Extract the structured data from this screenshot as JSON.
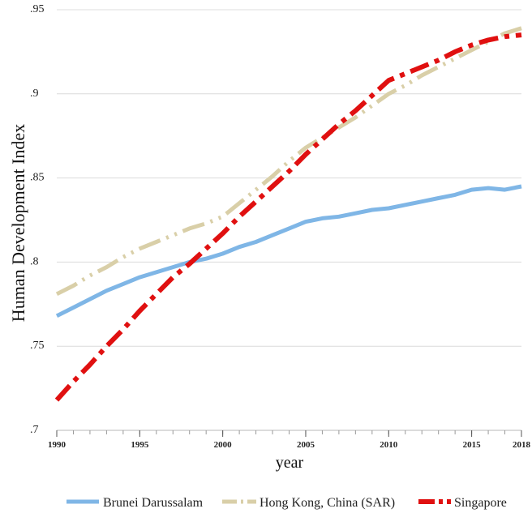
{
  "chart_data": {
    "type": "line",
    "title": "",
    "xlabel": "year",
    "ylabel": "Human Development Index",
    "xlim": [
      1990,
      2018
    ],
    "ylim": [
      0.7,
      0.95
    ],
    "x_ticks": [
      1990,
      1995,
      2000,
      2005,
      2010,
      2015,
      2018
    ],
    "x_tick_labels": [
      "1990",
      "1995",
      "2000",
      "2005",
      "2010",
      "2015",
      "2018"
    ],
    "y_ticks": [
      0.7,
      0.75,
      0.8,
      0.85,
      0.9,
      0.95
    ],
    "y_tick_labels": [
      ".7",
      ".75",
      ".8",
      ".85",
      ".9",
      ".95"
    ],
    "grid": true,
    "legend_position": "bottom",
    "x": [
      1990,
      1991,
      1992,
      1993,
      1994,
      1995,
      1996,
      1997,
      1998,
      1999,
      2000,
      2001,
      2002,
      2003,
      2004,
      2005,
      2006,
      2007,
      2008,
      2009,
      2010,
      2011,
      2012,
      2013,
      2014,
      2015,
      2016,
      2017,
      2018
    ],
    "series": [
      {
        "name": "Brunei Darussalam",
        "color": "#7fb6e6",
        "dash": "solid",
        "values": [
          0.768,
          0.773,
          0.778,
          0.783,
          0.787,
          0.791,
          0.794,
          0.797,
          0.8,
          0.802,
          0.805,
          0.809,
          0.812,
          0.816,
          0.82,
          0.824,
          0.826,
          0.827,
          0.829,
          0.831,
          0.832,
          0.834,
          0.836,
          0.838,
          0.84,
          0.843,
          0.844,
          0.843,
          0.845
        ]
      },
      {
        "name": "Hong Kong, China (SAR)",
        "color": "#d9cfa8",
        "dash": "dash-dot-dot",
        "values": [
          0.781,
          0.786,
          0.792,
          0.797,
          0.803,
          0.808,
          0.812,
          0.816,
          0.82,
          0.823,
          0.827,
          0.835,
          0.843,
          0.851,
          0.86,
          0.868,
          0.874,
          0.88,
          0.886,
          0.893,
          0.9,
          0.905,
          0.911,
          0.916,
          0.921,
          0.926,
          0.931,
          0.936,
          0.939
        ]
      },
      {
        "name": "Singapore",
        "color": "#e01010",
        "dash": "dash-dot",
        "values": [
          0.718,
          0.729,
          0.739,
          0.75,
          0.76,
          0.771,
          0.781,
          0.791,
          0.799,
          0.808,
          0.817,
          0.827,
          0.836,
          0.845,
          0.854,
          0.864,
          0.873,
          0.882,
          0.89,
          0.899,
          0.908,
          0.912,
          0.916,
          0.92,
          0.925,
          0.929,
          0.932,
          0.934,
          0.935
        ]
      }
    ]
  }
}
